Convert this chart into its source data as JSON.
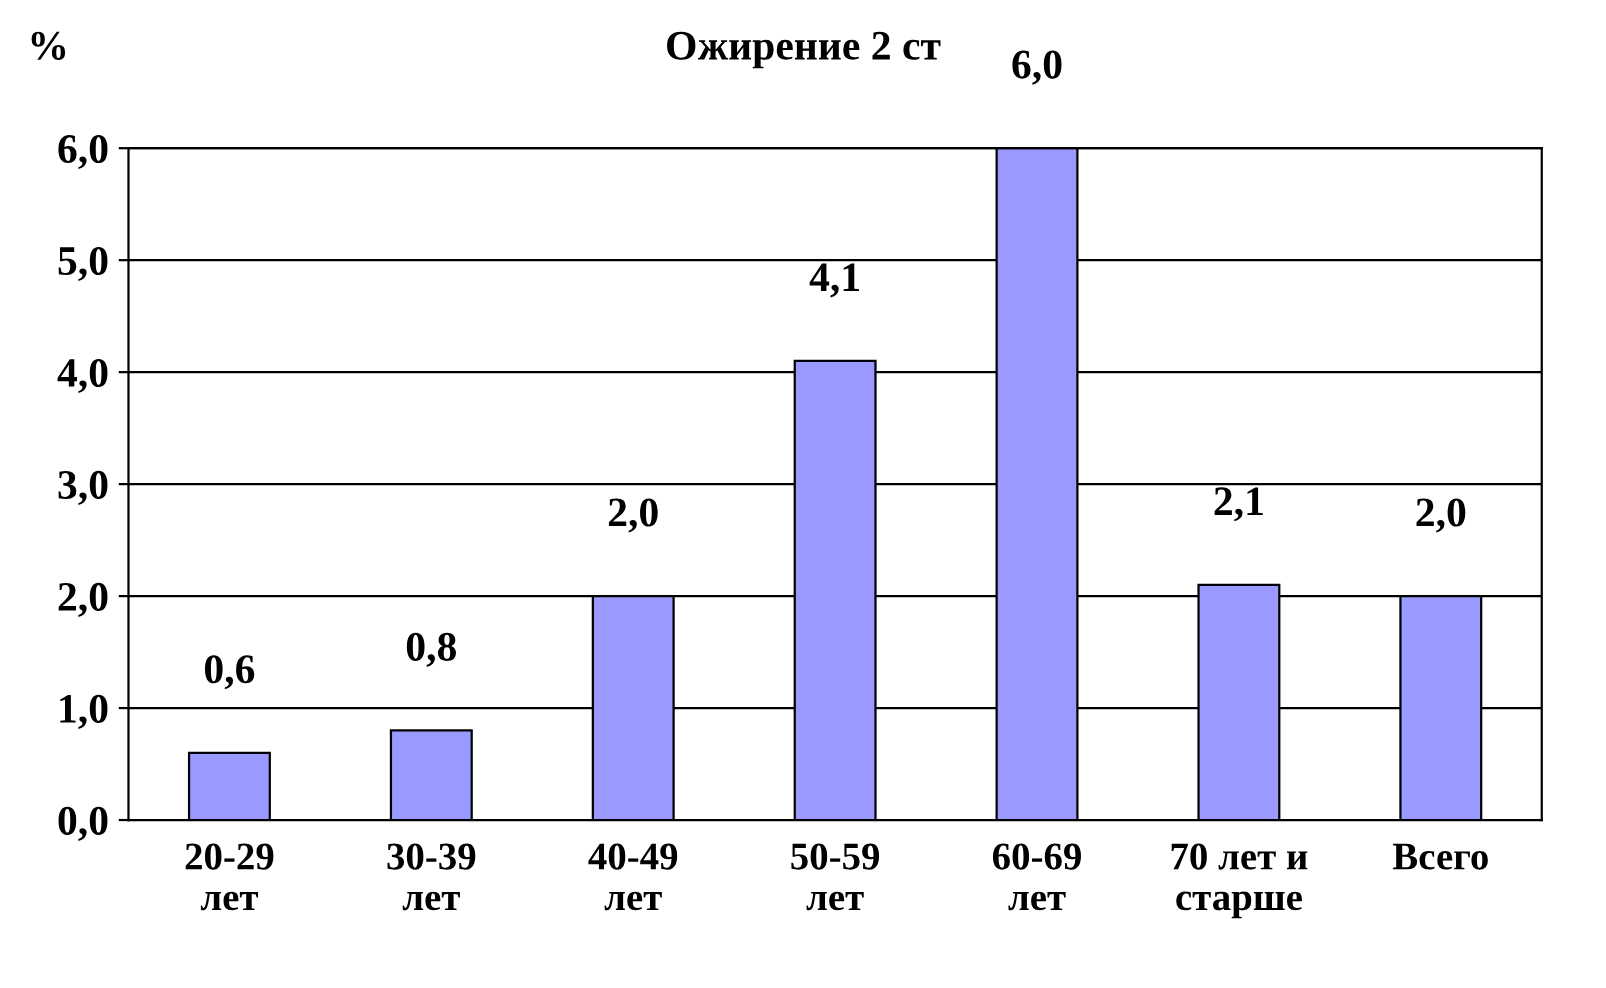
{
  "chart_data": {
    "type": "bar",
    "title": "Ожирение 2 ст",
    "ylabel": "%",
    "categories": [
      "20-29\nлет",
      "30-39\nлет",
      "40-49\nлет",
      "50-59\nлет",
      "60-69\nлет",
      "70 лет и\nстарше",
      "Всего"
    ],
    "values": [
      0.6,
      0.8,
      2.0,
      4.1,
      6.0,
      2.1,
      2.0
    ],
    "value_labels": [
      "0,6",
      "0,8",
      "2,0",
      "4,1",
      "6,0",
      "2,1",
      "2,0"
    ],
    "color": "#9999ff",
    "ylim": [
      0,
      6
    ],
    "yticks": [
      {
        "value": 0,
        "label": "0,0"
      },
      {
        "value": 1,
        "label": "1,0"
      },
      {
        "value": 2,
        "label": "2,0"
      },
      {
        "value": 3,
        "label": "3,0"
      },
      {
        "value": 4,
        "label": "4,0"
      },
      {
        "value": 5,
        "label": "5,0"
      },
      {
        "value": 6,
        "label": "6,0"
      }
    ],
    "grid": "y",
    "legend": false
  }
}
